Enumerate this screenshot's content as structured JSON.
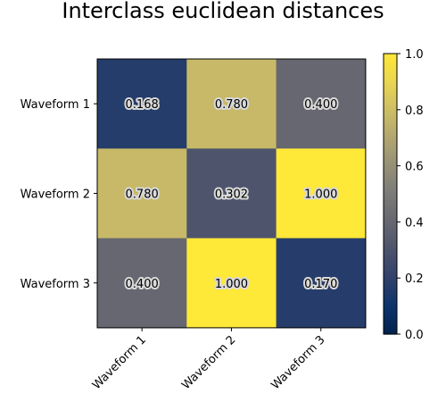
{
  "chart_data": {
    "type": "heatmap",
    "title": "Interclass euclidean distances",
    "x_categories": [
      "Waveform 1",
      "Waveform 2",
      "Waveform 3"
    ],
    "y_categories": [
      "Waveform 1",
      "Waveform 2",
      "Waveform 3"
    ],
    "values": [
      [
        0.168,
        0.78,
        0.4
      ],
      [
        0.78,
        0.302,
        1.0
      ],
      [
        0.4,
        1.0,
        0.17
      ]
    ],
    "value_labels": [
      [
        "0.168",
        "0.780",
        "0.400"
      ],
      [
        "0.780",
        "0.302",
        "1.000"
      ],
      [
        "0.400",
        "1.000",
        "0.170"
      ]
    ],
    "colormap": "cividis",
    "colorbar": {
      "range": [
        0.0,
        1.0
      ],
      "ticks": [
        0.0,
        0.2,
        0.4,
        0.6,
        0.8,
        1.0
      ],
      "tick_labels": [
        "0.0",
        "0.2",
        "0.4",
        "0.6",
        "0.8",
        "1.0"
      ]
    },
    "x_tick_rotation": "45 degrees",
    "grid": false
  }
}
